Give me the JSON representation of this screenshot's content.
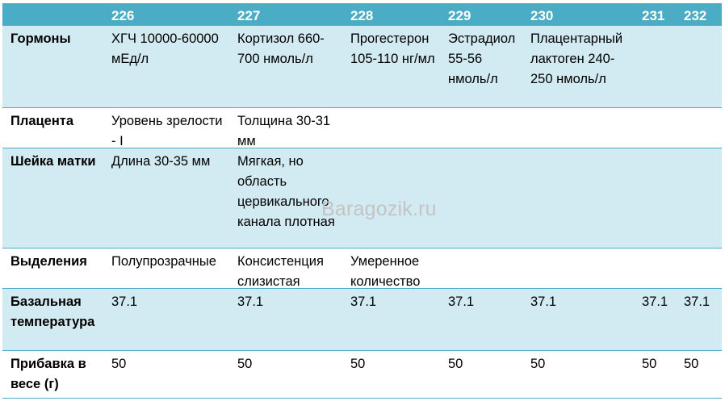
{
  "table": {
    "header": [
      "",
      "226",
      "227",
      "228",
      "229",
      "230",
      "231",
      "232"
    ],
    "rows": [
      {
        "label": "Гормоны",
        "cells": [
          "ХГЧ 10000-60000 мЕд/л",
          "Кортизол 660-700 нмоль/л",
          "Прогестерон 105-110 нг/мл",
          "Эстрадиол 55-56 нмоль/л",
          "Плацентарный лактоген 240-250 нмоль/л",
          "",
          ""
        ]
      },
      {
        "label": "Плацента",
        "cells": [
          "Уровень зрелости - I",
          "Толщина 30-31 мм",
          "",
          "",
          "",
          "",
          ""
        ]
      },
      {
        "label": "Шейка матки",
        "cells": [
          "Длина 30-35 мм",
          "Мягкая, но область цервикального канала плотная",
          "",
          "",
          "",
          "",
          ""
        ]
      },
      {
        "label": "Выделения",
        "cells": [
          "Полупрозрачные",
          "Консистенция слизистая",
          "Умеренное количество",
          "",
          "",
          "",
          ""
        ]
      },
      {
        "label": "Базальная температура",
        "cells": [
          "37.1",
          "37.1",
          "37.1",
          "37.1",
          "37.1",
          "37.1",
          "37.1"
        ]
      },
      {
        "label": "Прибавка в весе (г)",
        "cells": [
          "50",
          "50",
          "50",
          "50",
          "50",
          "50",
          "50"
        ]
      }
    ]
  },
  "watermark": "Baragozik.ru",
  "colors": {
    "header": "#4bacc6",
    "band": "#d2eaf1",
    "white": "#ffffff"
  }
}
